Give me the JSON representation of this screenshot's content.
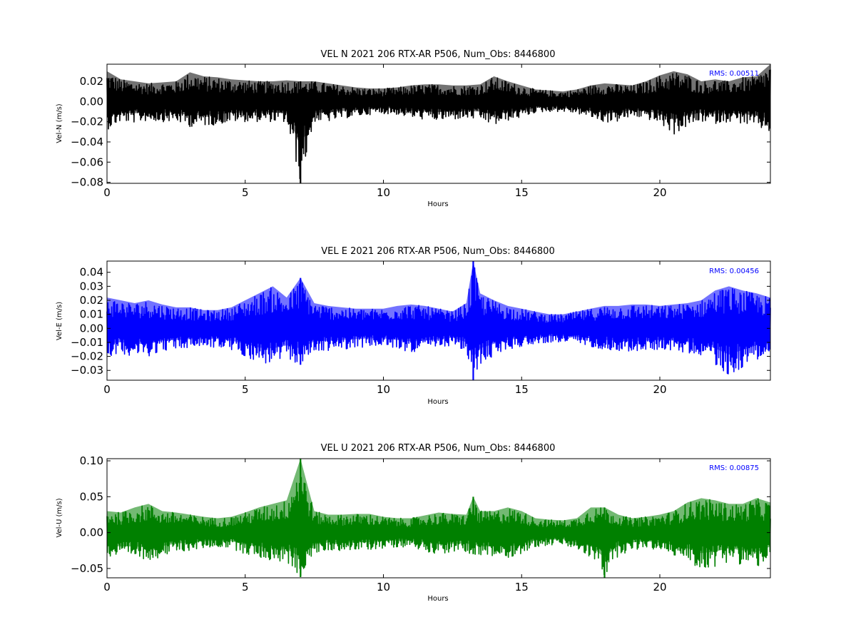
{
  "chart_data": [
    {
      "type": "line",
      "title": "VEL N 2021 206 RTX-AR  P506, Num_Obs: 8446800",
      "xlabel": "Hours",
      "ylabel": "Vel-N (m/s)",
      "color": "#000000",
      "xlim": [
        0,
        24
      ],
      "ylim": [
        -0.081,
        0.037
      ],
      "xticks": [
        0,
        5,
        10,
        15,
        20
      ],
      "xtick_labels": [
        "0",
        "5",
        "10",
        "15",
        "20"
      ],
      "yticks": [
        0.02,
        0.0,
        -0.02,
        -0.04,
        -0.06,
        -0.08
      ],
      "ytick_labels": [
        "0.02",
        "0.00",
        "−0.02",
        "−0.04",
        "−0.06",
        "−0.08"
      ],
      "annotation": "RMS:  0.00511",
      "annotation_color": "#0000ff",
      "series": [
        {
          "x": [
            0,
            0.5,
            1,
            1.5,
            2,
            2.5,
            3,
            3.5,
            4,
            4.5,
            5,
            5.5,
            6,
            6.5,
            7,
            7.5,
            8,
            8.5,
            9,
            9.5,
            10,
            10.5,
            11,
            11.5,
            12,
            12.5,
            13,
            13.5,
            14,
            14.5,
            15,
            15.5,
            16,
            16.5,
            17,
            17.5,
            18,
            18.5,
            19,
            19.5,
            20,
            20.5,
            21,
            21.5,
            22,
            22.5,
            23,
            23.5,
            24
          ],
          "y_upper": [
            0.03,
            0.022,
            0.02,
            0.018,
            0.019,
            0.02,
            0.029,
            0.025,
            0.024,
            0.022,
            0.021,
            0.02,
            0.02,
            0.021,
            0.02,
            0.02,
            0.018,
            0.016,
            0.014,
            0.013,
            0.013,
            0.014,
            0.016,
            0.017,
            0.017,
            0.016,
            0.016,
            0.017,
            0.025,
            0.02,
            0.016,
            0.012,
            0.011,
            0.01,
            0.012,
            0.016,
            0.018,
            0.017,
            0.016,
            0.02,
            0.026,
            0.03,
            0.027,
            0.02,
            0.022,
            0.02,
            0.024,
            0.025,
            0.037
          ],
          "y_lower": [
            -0.028,
            -0.02,
            -0.021,
            -0.019,
            -0.02,
            -0.02,
            -0.025,
            -0.024,
            -0.023,
            -0.02,
            -0.02,
            -0.02,
            -0.02,
            -0.021,
            -0.081,
            -0.02,
            -0.02,
            -0.017,
            -0.015,
            -0.013,
            -0.012,
            -0.013,
            -0.016,
            -0.018,
            -0.019,
            -0.018,
            -0.017,
            -0.018,
            -0.024,
            -0.019,
            -0.016,
            -0.011,
            -0.01,
            -0.01,
            -0.012,
            -0.016,
            -0.021,
            -0.02,
            -0.015,
            -0.017,
            -0.022,
            -0.033,
            -0.025,
            -0.02,
            -0.022,
            -0.02,
            -0.022,
            -0.026,
            -0.031
          ]
        }
      ]
    },
    {
      "type": "line",
      "title": "VEL E 2021 206 RTX-AR  P506, Num_Obs: 8446800",
      "xlabel": "Hours",
      "ylabel": "Vel-E (m/s)",
      "color": "#0000ff",
      "xlim": [
        0,
        24
      ],
      "ylim": [
        -0.037,
        0.048
      ],
      "xticks": [
        0,
        5,
        10,
        15,
        20
      ],
      "xtick_labels": [
        "0",
        "5",
        "10",
        "15",
        "20"
      ],
      "yticks": [
        0.04,
        0.03,
        0.02,
        0.01,
        0.0,
        -0.01,
        -0.02,
        -0.03
      ],
      "ytick_labels": [
        "0.04",
        "0.03",
        "0.02",
        "0.01",
        "0.00",
        "−0.01",
        "−0.02",
        "−0.03"
      ],
      "annotation": "RMS:  0.00456",
      "annotation_color": "#0000ff",
      "series": [
        {
          "x": [
            0,
            0.5,
            1,
            1.5,
            2,
            2.5,
            3,
            3.5,
            4,
            4.5,
            5,
            5.5,
            6,
            6.5,
            7,
            7.5,
            8,
            8.5,
            9,
            9.5,
            10,
            10.5,
            11,
            11.5,
            12,
            12.5,
            13,
            13.25,
            13.5,
            14,
            14.5,
            15,
            15.5,
            16,
            16.5,
            17,
            17.5,
            18,
            18.5,
            19,
            19.5,
            20,
            20.5,
            21,
            21.5,
            22,
            22.5,
            23,
            23.5,
            24
          ],
          "y_upper": [
            0.022,
            0.02,
            0.018,
            0.02,
            0.017,
            0.015,
            0.015,
            0.013,
            0.013,
            0.015,
            0.02,
            0.025,
            0.03,
            0.022,
            0.036,
            0.018,
            0.016,
            0.015,
            0.014,
            0.014,
            0.014,
            0.016,
            0.017,
            0.016,
            0.014,
            0.012,
            0.018,
            0.048,
            0.025,
            0.02,
            0.016,
            0.014,
            0.012,
            0.01,
            0.01,
            0.012,
            0.014,
            0.016,
            0.016,
            0.017,
            0.017,
            0.016,
            0.017,
            0.018,
            0.02,
            0.027,
            0.03,
            0.027,
            0.025,
            0.022
          ],
          "y_lower": [
            -0.02,
            -0.018,
            -0.02,
            -0.02,
            -0.016,
            -0.015,
            -0.014,
            -0.013,
            -0.014,
            -0.016,
            -0.02,
            -0.025,
            -0.026,
            -0.022,
            -0.026,
            -0.017,
            -0.016,
            -0.015,
            -0.014,
            -0.013,
            -0.013,
            -0.015,
            -0.017,
            -0.016,
            -0.014,
            -0.012,
            -0.018,
            -0.037,
            -0.026,
            -0.02,
            -0.015,
            -0.013,
            -0.011,
            -0.01,
            -0.01,
            -0.011,
            -0.013,
            -0.015,
            -0.016,
            -0.017,
            -0.016,
            -0.015,
            -0.016,
            -0.018,
            -0.019,
            -0.026,
            -0.034,
            -0.028,
            -0.022,
            -0.02
          ]
        }
      ]
    },
    {
      "type": "line",
      "title": "VEL U 2021 206 RTX-AR  P506, Num_Obs: 8446800",
      "xlabel": "Hours",
      "ylabel": "Vel-U (m/s)",
      "color": "#008000",
      "xlim": [
        0,
        24
      ],
      "ylim": [
        -0.063,
        0.103
      ],
      "xticks": [
        0,
        5,
        10,
        15,
        20
      ],
      "xtick_labels": [
        "0",
        "5",
        "10",
        "15",
        "20"
      ],
      "yticks": [
        0.1,
        0.05,
        0.0,
        -0.05
      ],
      "ytick_labels": [
        "0.10",
        "0.05",
        "0.00",
        "−0.05"
      ],
      "annotation": "RMS:  0.00875",
      "annotation_color": "#0000ff",
      "series": [
        {
          "x": [
            0,
            0.5,
            1,
            1.5,
            2,
            2.5,
            3,
            3.5,
            4,
            4.5,
            5,
            5.5,
            6,
            6.5,
            7,
            7.5,
            8,
            8.5,
            9,
            9.5,
            10,
            10.5,
            11,
            11.5,
            12,
            12.5,
            13,
            13.25,
            13.5,
            14,
            14.5,
            15,
            15.5,
            16,
            16.5,
            17,
            17.5,
            18,
            18.5,
            19,
            19.5,
            20,
            20.5,
            21,
            21.5,
            22,
            22.5,
            23,
            23.5,
            24
          ],
          "y_upper": [
            0.03,
            0.028,
            0.035,
            0.04,
            0.03,
            0.028,
            0.025,
            0.022,
            0.02,
            0.022,
            0.028,
            0.035,
            0.04,
            0.045,
            0.103,
            0.03,
            0.025,
            0.025,
            0.026,
            0.026,
            0.022,
            0.02,
            0.02,
            0.024,
            0.028,
            0.026,
            0.025,
            0.05,
            0.03,
            0.03,
            0.035,
            0.03,
            0.02,
            0.018,
            0.017,
            0.02,
            0.035,
            0.035,
            0.025,
            0.02,
            0.022,
            0.025,
            0.03,
            0.042,
            0.048,
            0.045,
            0.04,
            0.04,
            0.048,
            0.042
          ],
          "y_lower": [
            -0.035,
            -0.035,
            -0.035,
            -0.038,
            -0.034,
            -0.028,
            -0.025,
            -0.022,
            -0.02,
            -0.022,
            -0.03,
            -0.035,
            -0.04,
            -0.042,
            -0.062,
            -0.03,
            -0.025,
            -0.025,
            -0.025,
            -0.024,
            -0.022,
            -0.02,
            -0.02,
            -0.026,
            -0.03,
            -0.028,
            -0.028,
            -0.03,
            -0.035,
            -0.035,
            -0.035,
            -0.03,
            -0.02,
            -0.018,
            -0.017,
            -0.025,
            -0.035,
            -0.063,
            -0.032,
            -0.025,
            -0.022,
            -0.025,
            -0.032,
            -0.04,
            -0.052,
            -0.048,
            -0.04,
            -0.045,
            -0.05,
            -0.035
          ]
        }
      ]
    }
  ]
}
